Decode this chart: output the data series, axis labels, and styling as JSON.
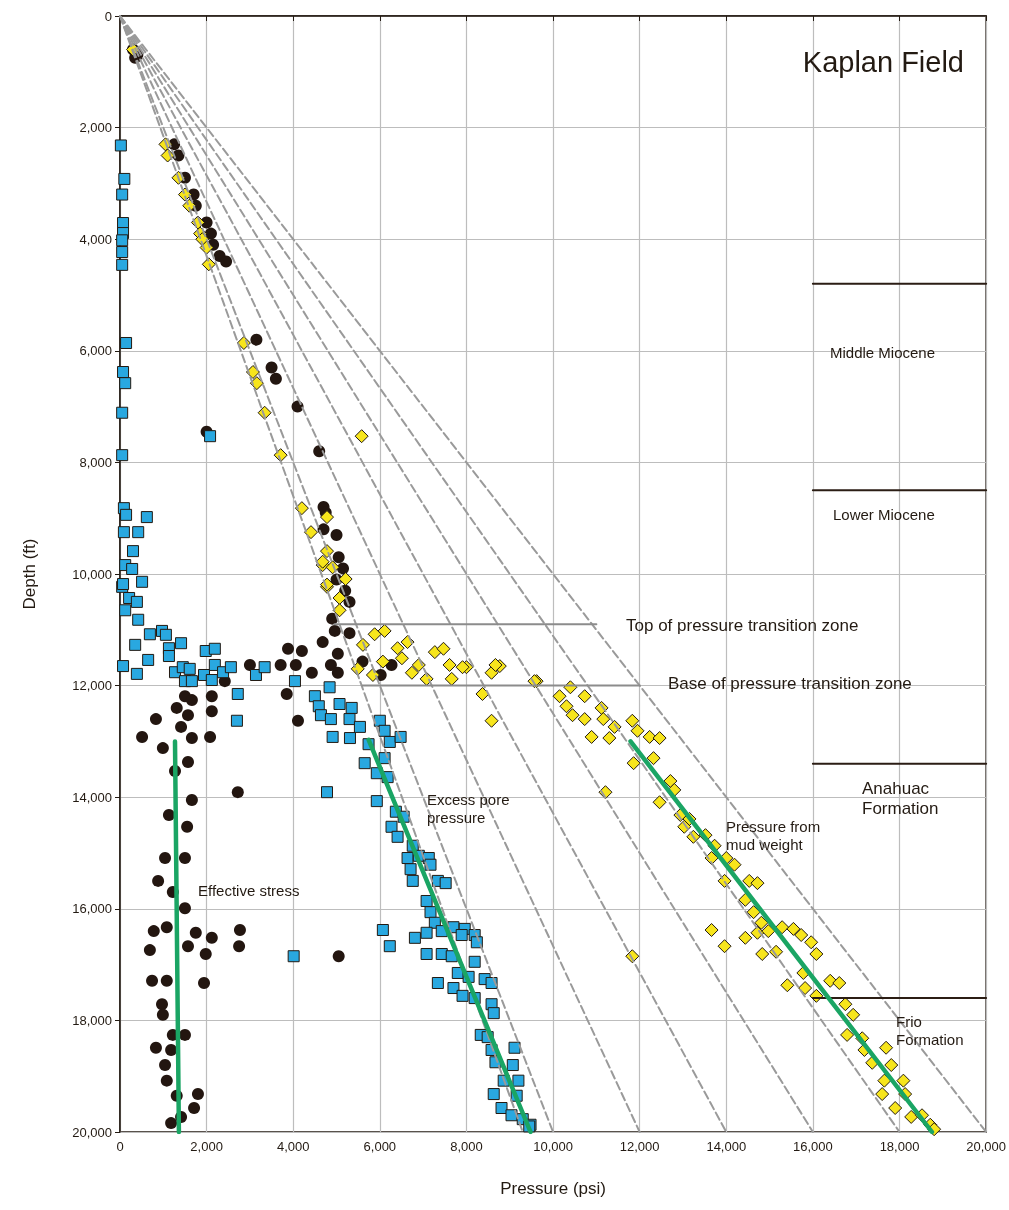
{
  "chart_data": {
    "type": "scatter",
    "title": "Kaplan Field",
    "xlabel": "Pressure (psi)",
    "ylabel": "Depth (ft)",
    "xlim": [
      0,
      20000
    ],
    "ylim": [
      20000,
      0
    ],
    "xticks": [
      0,
      {
        "value": 2000,
        "label": "2,000"
      },
      {
        "value": 4000,
        "label": "4,000"
      },
      {
        "value": 6000,
        "label": "6,000"
      },
      {
        "value": 8000,
        "label": "8,000"
      },
      {
        "value": 10000,
        "label": "10,000"
      },
      {
        "value": 12000,
        "label": "12,000"
      },
      {
        "value": 14000,
        "label": "14,000"
      },
      {
        "value": 16000,
        "label": "16,000"
      },
      {
        "value": 18000,
        "label": "18,000"
      },
      {
        "value": 20000,
        "label": "20,000"
      }
    ],
    "yticks": [
      0,
      {
        "value": 2000,
        "label": "2,000"
      },
      {
        "value": 4000,
        "label": "4,000"
      },
      {
        "value": 6000,
        "label": "6,000"
      },
      {
        "value": 8000,
        "label": "8,000"
      },
      {
        "value": 10000,
        "label": "10,000"
      },
      {
        "value": 12000,
        "label": "12,000"
      },
      {
        "value": 14000,
        "label": "14,000"
      },
      {
        "value": 16000,
        "label": "16,000"
      },
      {
        "value": 18000,
        "label": "18,000"
      },
      {
        "value": 20000,
        "label": "20,000"
      }
    ],
    "grid": true,
    "series": [
      {
        "type": "line",
        "color": "#9a9a9a",
        "line_style": "dashed",
        "marker": "none",
        "x": [
          0,
          9300
        ],
        "values": [
          0,
          20000
        ]
      },
      {
        "type": "line",
        "color": "#9a9a9a",
        "line_style": "dashed",
        "marker": "none",
        "x": [
          0,
          10000
        ],
        "values": [
          0,
          20000
        ]
      },
      {
        "type": "line",
        "color": "#9a9a9a",
        "line_style": "dashed",
        "marker": "none",
        "x": [
          0,
          12000
        ],
        "values": [
          0,
          20000
        ]
      },
      {
        "type": "line",
        "color": "#9a9a9a",
        "line_style": "dashed",
        "marker": "none",
        "x": [
          0,
          14000
        ],
        "values": [
          0,
          20000
        ]
      },
      {
        "type": "line",
        "color": "#9a9a9a",
        "line_style": "dashed",
        "marker": "none",
        "x": [
          0,
          16000
        ],
        "values": [
          0,
          20000
        ]
      },
      {
        "type": "line",
        "color": "#9a9a9a",
        "line_style": "dashed",
        "marker": "none",
        "x": [
          0,
          18000
        ],
        "values": [
          0,
          20000
        ]
      },
      {
        "type": "line",
        "color": "#9a9a9a",
        "line_style": "dashed",
        "marker": "none",
        "x": [
          0,
          20000
        ],
        "values": [
          0,
          20000
        ]
      },
      {
        "type": "line",
        "color": "#2b1d14",
        "line_style": "solid",
        "marker": "none",
        "x": [
          16000,
          20000
        ],
        "values": [
          4800,
          4800
        ]
      },
      {
        "type": "line",
        "color": "#2b1d14",
        "line_style": "solid",
        "marker": "none",
        "x": [
          16000,
          20000
        ],
        "values": [
          8500,
          8500
        ]
      },
      {
        "type": "line",
        "color": "#2b1d14",
        "line_style": "solid",
        "marker": "none",
        "x": [
          16000,
          20000
        ],
        "values": [
          13400,
          13400
        ]
      },
      {
        "type": "line",
        "color": "#2b1d14",
        "line_style": "solid",
        "marker": "none",
        "x": [
          16000,
          20000
        ],
        "values": [
          17600,
          17600
        ]
      },
      {
        "type": "line",
        "color": "#8c8c8c",
        "line_style": "solid",
        "marker": "none",
        "x": [
          4950,
          11000
        ],
        "values": [
          10900,
          10900
        ]
      },
      {
        "type": "line",
        "color": "#8c8c8c",
        "line_style": "solid",
        "marker": "none",
        "x": [
          5600,
          12000
        ],
        "values": [
          12000,
          12000
        ]
      },
      {
        "color": "#231610",
        "marker": "circle",
        "x": [
          300,
          400,
          350,
          1250,
          1350,
          1500,
          1700,
          1750,
          2000,
          2100,
          2150,
          2300,
          2450,
          3150,
          3500,
          3600,
          4100,
          2000,
          4600,
          4700,
          4750,
          4700,
          5000,
          5050,
          5150,
          5000,
          5200,
          5300,
          4900,
          3880,
          4200,
          4680,
          4960,
          5300,
          5030,
          3000,
          3710,
          4060,
          4430,
          4870,
          5030,
          5600,
          6020,
          6270,
          2420,
          3850,
          4110,
          1500,
          1660,
          2120,
          1310,
          1570,
          2120,
          830,
          1410,
          1660,
          510,
          2080,
          990,
          1570,
          2720,
          1660,
          1270,
          1130,
          1550,
          1040,
          1500,
          880,
          1220,
          1500,
          780,
          1080,
          1750,
          2120,
          2770,
          2750,
          690,
          1570,
          1980,
          5050,
          740,
          1080,
          1940,
          970,
          990,
          1220,
          1500,
          830,
          1180,
          1040,
          1080,
          1800,
          1310,
          1710,
          1180,
          1410
        ],
        "values": [
          600,
          700,
          750,
          2300,
          2500,
          2900,
          3200,
          3400,
          3700,
          3900,
          4100,
          4300,
          4400,
          5800,
          6300,
          6500,
          7000,
          7450,
          7800,
          8800,
          8900,
          9200,
          9300,
          9700,
          9900,
          10100,
          10300,
          10500,
          10800,
          11340,
          11380,
          11220,
          11020,
          11060,
          11430,
          11630,
          11630,
          11630,
          11770,
          11630,
          11770,
          11570,
          11810,
          11630,
          11920,
          12150,
          12630,
          12190,
          12260,
          12190,
          12400,
          12530,
          12460,
          12600,
          12740,
          12940,
          12920,
          12920,
          13120,
          13370,
          13910,
          14050,
          13530,
          14320,
          14530,
          15090,
          15090,
          15500,
          15700,
          15990,
          16400,
          16330,
          16430,
          16520,
          16380,
          16670,
          16740,
          16670,
          16810,
          16850,
          17290,
          17290,
          17330,
          17710,
          17900,
          18260,
          18260,
          18490,
          18530,
          18800,
          19080,
          19320,
          19350,
          19570,
          19840,
          19730
        ]
      },
      {
        "color": "#29a8e0",
        "marker": "square",
        "x": [
          20,
          100,
          50,
          70,
          70,
          50,
          50,
          50,
          140,
          70,
          120,
          50,
          2080,
          50,
          90,
          140,
          620,
          90,
          420,
          300,
          120,
          280,
          510,
          50,
          70,
          210,
          390,
          120,
          420,
          690,
          970,
          1060,
          1410,
          350,
          1130,
          1980,
          2190,
          650,
          1130,
          70,
          390,
          1270,
          1450,
          1610,
          1940,
          2190,
          2380,
          2560,
          3140,
          3340,
          1500,
          1660,
          2120,
          4040,
          2720,
          2700,
          4840,
          4500,
          4590,
          5070,
          4640,
          4870,
          5350,
          5300,
          5540,
          4910,
          5310,
          5740,
          6000,
          6110,
          6230,
          6480,
          6110,
          5650,
          5930,
          6180,
          4780,
          5930,
          6370,
          6550,
          6270,
          6410,
          6760,
          6640,
          6900,
          7130,
          7170,
          6710,
          6760,
          7340,
          7520,
          7080,
          7170,
          7270,
          6070,
          7080,
          7430,
          7700,
          7960,
          8190,
          8240,
          7890,
          6810,
          6230,
          4010,
          7080,
          7430,
          7660,
          8190,
          7800,
          8050,
          8420,
          8580,
          7340,
          7700,
          7910,
          8190,
          8580,
          8630,
          8330,
          8490,
          8580,
          9110,
          8670,
          9070,
          8630,
          8860,
          9200,
          9160,
          8810,
          9040,
          9300,
          9480,
          9450
        ],
        "values": [
          2320,
          2920,
          3200,
          3710,
          3890,
          4020,
          4230,
          4460,
          5860,
          6380,
          6580,
          7110,
          7530,
          7870,
          8820,
          8940,
          8980,
          9250,
          9250,
          9590,
          9840,
          9910,
          10140,
          10230,
          10180,
          10430,
          10500,
          10650,
          10820,
          11080,
          11020,
          11090,
          11240,
          11270,
          11330,
          11380,
          11340,
          11540,
          11470,
          11650,
          11790,
          11760,
          11670,
          11700,
          11810,
          11630,
          11760,
          11670,
          11810,
          11670,
          11920,
          11920,
          11900,
          11920,
          12150,
          12630,
          12030,
          12190,
          12370,
          12330,
          12530,
          12600,
          12400,
          12600,
          12740,
          12920,
          12940,
          13050,
          12630,
          12810,
          13010,
          12920,
          13300,
          13390,
          13570,
          13640,
          13910,
          14070,
          14260,
          14350,
          14530,
          14710,
          14870,
          15090,
          15050,
          15090,
          15210,
          15290,
          15500,
          15500,
          15540,
          15860,
          16060,
          16250,
          16380,
          16430,
          16400,
          16330,
          16360,
          16470,
          16600,
          16470,
          16520,
          16670,
          16850,
          16810,
          16810,
          16850,
          16950,
          17150,
          17220,
          17260,
          17330,
          17330,
          17420,
          17560,
          17600,
          17710,
          17870,
          18260,
          18300,
          18530,
          18490,
          18750,
          18800,
          19320,
          19080,
          19080,
          19350,
          19570,
          19700,
          19770,
          19870,
          19900
        ]
      },
      {
        "color": "#f7e51c",
        "marker": "diamond",
        "x": [
          300,
          1050,
          1100,
          1350,
          1500,
          1600,
          1800,
          1850,
          1900,
          2000,
          2050,
          2860,
          3070,
          3160,
          3340,
          5580,
          3710,
          4200,
          4780,
          4410,
          4780,
          4680,
          4780,
          4680,
          4910,
          5210,
          4780,
          5070,
          5070,
          5880,
          6110,
          6640,
          5610,
          6410,
          6510,
          7270,
          7470,
          6070,
          6900,
          7610,
          8000,
          8770,
          8580,
          5840,
          6740,
          7080,
          7660,
          9620,
          5490,
          8370,
          8580,
          7910,
          8670,
          9570,
          10150,
          10400,
          10310,
          10450,
          10730,
          11120,
          10730,
          11160,
          11420,
          10890,
          11300,
          11830,
          11950,
          12230,
          12460,
          11860,
          12320,
          12710,
          12800,
          11210,
          12460,
          12940,
          13150,
          13030,
          13240,
          13520,
          13730,
          13660,
          14000,
          14190,
          13960,
          14530,
          14720,
          14440,
          14630,
          14810,
          13660,
          13960,
          14440,
          14720,
          14970,
          15290,
          15550,
          15730,
          15960,
          16080,
          14830,
          15150,
          15410,
          15780,
          15820,
          16080,
          16400,
          16610,
          16750,
          16930,
          16790,
          17140,
          17190,
          17370,
          17690,
          17810,
          17650,
          18090,
          17600,
          18130,
          17900,
          18270,
          18520,
          18710,
          18800,
          11830
        ],
        "values": [
          600,
          2300,
          2500,
          2900,
          3200,
          3400,
          3700,
          3900,
          4000,
          4150,
          4450,
          5860,
          6380,
          6580,
          7110,
          7530,
          7870,
          8820,
          8980,
          9250,
          9590,
          9840,
          10230,
          9780,
          9880,
          10090,
          10190,
          10430,
          10650,
          11080,
          11020,
          11220,
          11270,
          11330,
          11510,
          11400,
          11340,
          11570,
          11630,
          11630,
          11670,
          11650,
          11770,
          11810,
          11770,
          11880,
          11880,
          11920,
          11700,
          12150,
          12630,
          11670,
          11630,
          11920,
          12190,
          12030,
          12370,
          12530,
          12190,
          12400,
          12600,
          12600,
          12740,
          12920,
          12940,
          12630,
          12810,
          12920,
          12940,
          13390,
          13300,
          13710,
          13870,
          13910,
          14090,
          14320,
          14390,
          14530,
          14710,
          14680,
          14870,
          15090,
          15090,
          15210,
          15500,
          15500,
          15540,
          15840,
          16060,
          16250,
          16380,
          16670,
          16520,
          16430,
          16400,
          16330,
          16360,
          16470,
          16600,
          16810,
          16810,
          16770,
          17370,
          17150,
          17420,
          17560,
          17290,
          17330,
          17710,
          17900,
          18260,
          18320,
          18530,
          18760,
          18490,
          18800,
          19080,
          19080,
          19320,
          19320,
          19570,
          19730,
          19700,
          19870,
          19950,
          16850
        ]
      },
      {
        "type": "line",
        "color": "#1aa564",
        "line_style": "solid",
        "marker": "none",
        "x": [
          1270,
          1360
        ],
        "values": [
          13000,
          20000
        ]
      },
      {
        "type": "line",
        "color": "#1aa564",
        "line_style": "solid",
        "marker": "none",
        "x": [
          5740,
          9480
        ],
        "values": [
          12970,
          20000
        ]
      },
      {
        "type": "line",
        "color": "#1aa564",
        "line_style": "solid",
        "marker": "none",
        "x": [
          11790,
          18750
        ],
        "values": [
          13000,
          20000
        ]
      }
    ],
    "annotations": [
      "Top of pressure transition zone",
      "Base of pressure transition zone",
      "Effective stress",
      "Excess pore\npressure",
      "Pressure from\nmud weight",
      "Middle Miocene",
      "Lower Miocene",
      "Anahuac\nFormation",
      "Frio\nFormation"
    ]
  }
}
